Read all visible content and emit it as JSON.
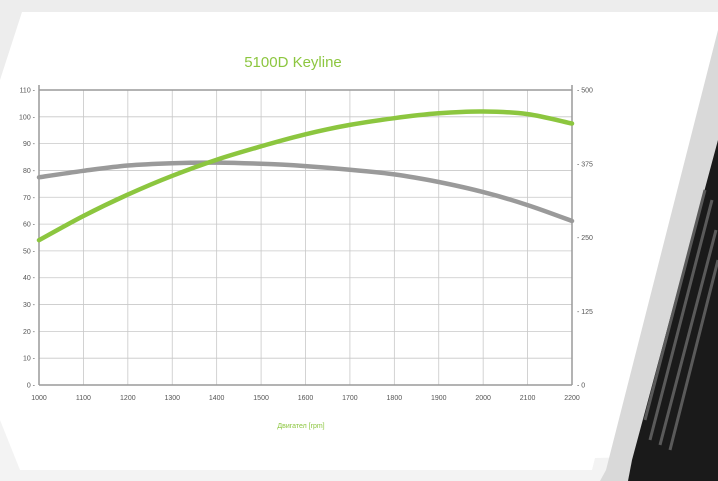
{
  "colors": {
    "power": "#8cc63f",
    "torque": "#9a9a9a",
    "grid": "#c8c8c8",
    "title": "#8cc63f",
    "background_panel": "#f2f2f2",
    "engine_image": "#1a1a1a"
  },
  "chart_data": {
    "type": "line",
    "title": "5100D Keyline",
    "xlabel": "Двигател [rpm]",
    "ylabel": "",
    "y2label": "",
    "xlim": [
      1000,
      2200
    ],
    "ylim": [
      0,
      110
    ],
    "y2lim": [
      0,
      500
    ],
    "x_ticks": [
      1000,
      1100,
      1200,
      1300,
      1400,
      1500,
      1600,
      1700,
      1800,
      1900,
      2000,
      2100,
      2200
    ],
    "y_ticks": [
      0,
      10,
      20,
      30,
      40,
      50,
      60,
      70,
      80,
      90,
      100,
      110
    ],
    "y2_ticks": [
      0,
      125,
      250,
      375,
      500
    ],
    "grid": true,
    "legend": "none",
    "series": [
      {
        "color": "#8cc63f",
        "axis": "left",
        "x": [
          1000,
          1100,
          1200,
          1300,
          1400,
          1500,
          1600,
          1700,
          1800,
          1900,
          2000,
          2100,
          2200
        ],
        "y": [
          54,
          63,
          71,
          78,
          84,
          89,
          93.5,
          97,
          99.5,
          101.3,
          102,
          101,
          97.5
        ]
      },
      {
        "color": "#9a9a9a",
        "axis": "right",
        "x": [
          1000,
          1100,
          1200,
          1300,
          1400,
          1500,
          1600,
          1700,
          1800,
          1900,
          2000,
          2100,
          2200
        ],
        "y": [
          352,
          363,
          372,
          376,
          377,
          375,
          371,
          365,
          357,
          344,
          327,
          305,
          278
        ]
      }
    ]
  }
}
